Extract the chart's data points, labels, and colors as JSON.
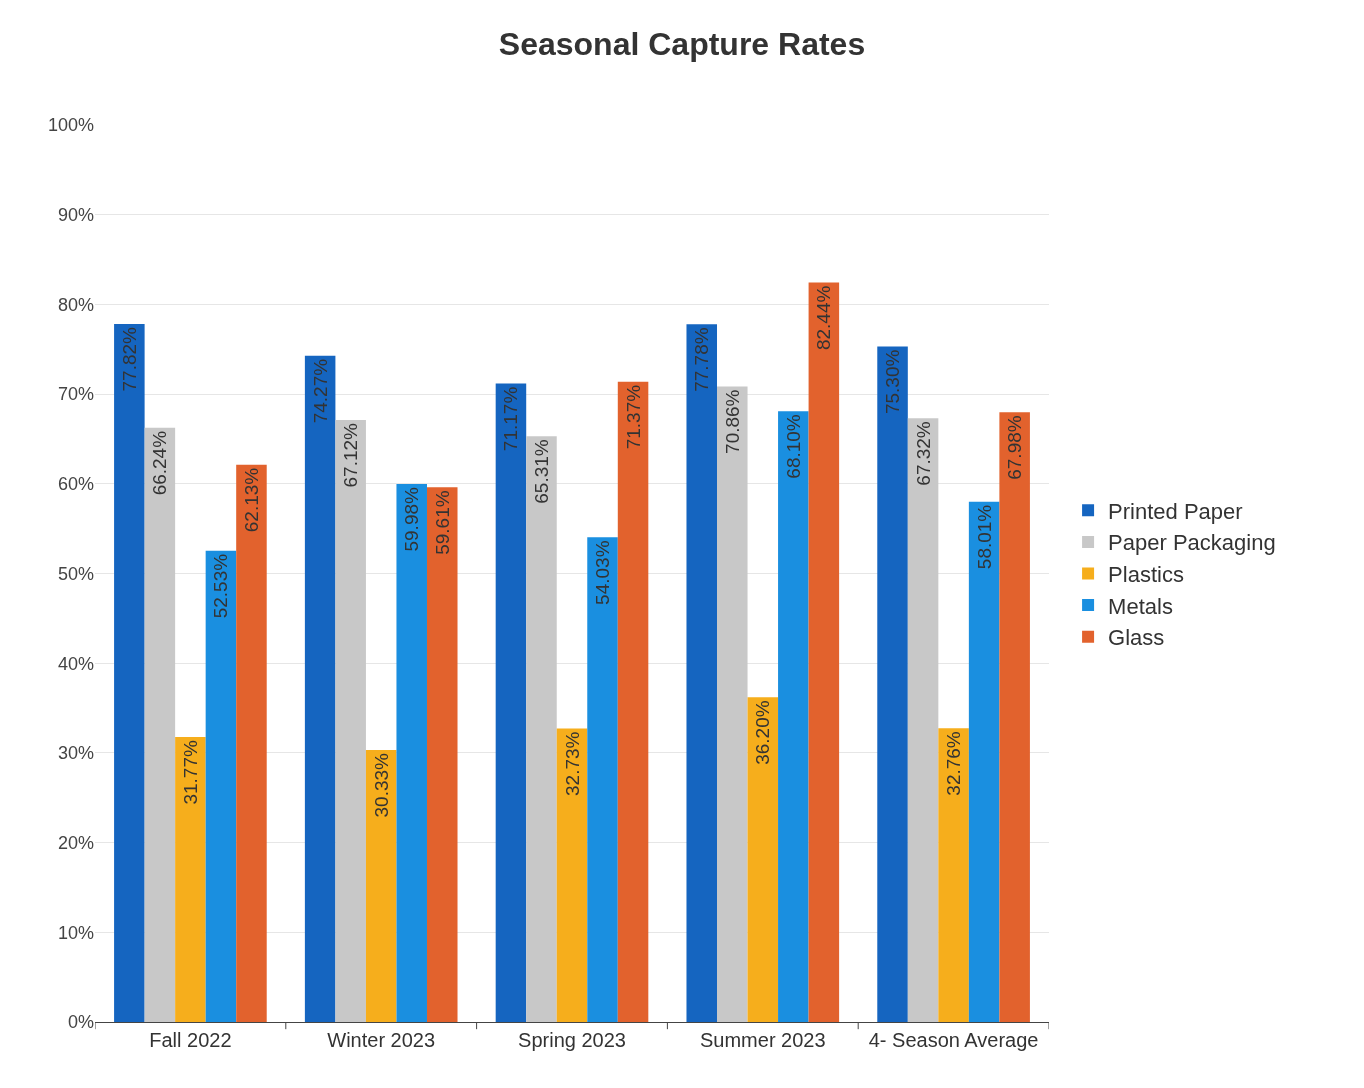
{
  "chart_data": {
    "type": "bar",
    "title": "Seasonal Capture Rates",
    "categories": [
      "Fall 2022",
      "Winter 2023",
      "Spring 2023",
      "Summer 2023",
      "4- Season Average"
    ],
    "series": [
      {
        "name": "Printed Paper",
        "color": "#1565c0",
        "values": [
          77.82,
          74.27,
          71.17,
          77.78,
          75.3
        ],
        "value_labels": [
          "77.82%",
          "74.27%",
          "71.17%",
          "77.78%",
          "75.30%"
        ]
      },
      {
        "name": "Paper Packaging",
        "color": "#c8c8c8",
        "values": [
          66.24,
          67.12,
          65.31,
          70.86,
          67.32
        ],
        "value_labels": [
          "66.24%",
          "67.12%",
          "65.31%",
          "70.86%",
          "67.32%"
        ]
      },
      {
        "name": "Plastics",
        "color": "#f6ae1c",
        "values": [
          31.77,
          30.33,
          32.73,
          36.2,
          32.76
        ],
        "value_labels": [
          "31.77%",
          "30.33%",
          "32.73%",
          "36.20%",
          "32.76%"
        ]
      },
      {
        "name": "Metals",
        "color": "#1a8fe0",
        "values": [
          52.53,
          59.98,
          54.03,
          68.1,
          58.01
        ],
        "value_labels": [
          "52.53%",
          "59.98%",
          "54.03%",
          "68.10%",
          "58.01%"
        ]
      },
      {
        "name": "Glass",
        "color": "#e2622d",
        "values": [
          62.13,
          59.61,
          71.37,
          82.44,
          67.98
        ],
        "value_labels": [
          "62.13%",
          "59.61%",
          "71.37%",
          "82.44%",
          "67.98%"
        ]
      }
    ],
    "ylim": [
      0,
      100
    ],
    "yticks": [
      {
        "value": 0,
        "label": "0%"
      },
      {
        "value": 10,
        "label": "10%"
      },
      {
        "value": 20,
        "label": "20%"
      },
      {
        "value": 30,
        "label": "30%"
      },
      {
        "value": 40,
        "label": "40%"
      },
      {
        "value": 50,
        "label": "50%"
      },
      {
        "value": 60,
        "label": "60%"
      },
      {
        "value": 70,
        "label": "70%"
      },
      {
        "value": 80,
        "label": "80%"
      },
      {
        "value": 90,
        "label": "90%"
      },
      {
        "value": 100,
        "label": "100%"
      }
    ],
    "grid": "y",
    "legend": "right"
  }
}
